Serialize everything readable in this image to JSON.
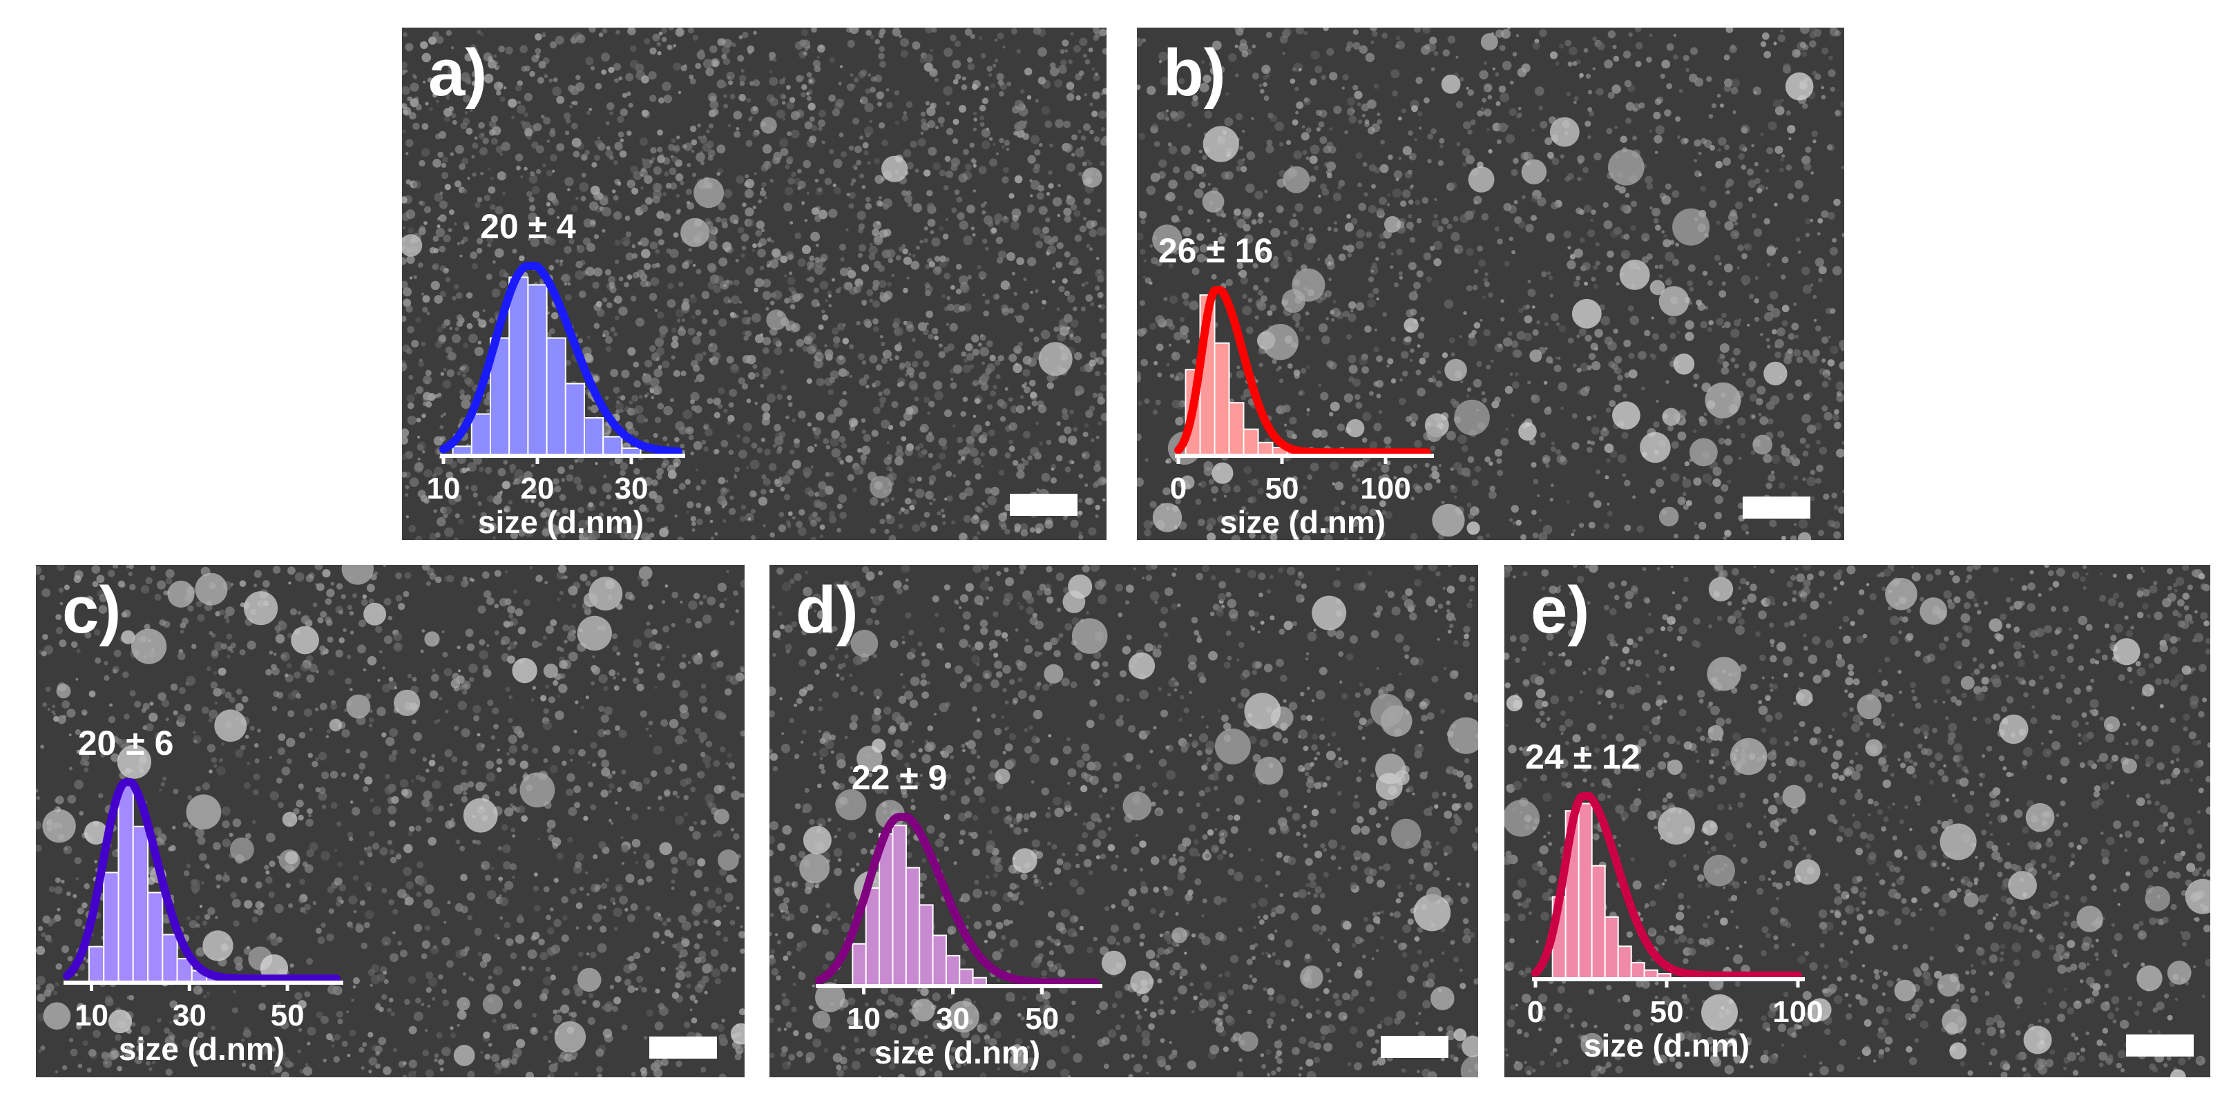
{
  "figure": {
    "panels": [
      {
        "id": "a",
        "label": "a)",
        "stat": "20 ± 4",
        "xlabel": "size (d.nm)",
        "xticks": [
          "10",
          "20",
          "30"
        ],
        "color": "#1a1aff",
        "bar_color": "#8d8dff",
        "x_range": [
          10,
          35
        ],
        "mode": 19,
        "bins": [
          {
            "x": 12,
            "h": 0.05
          },
          {
            "x": 14,
            "h": 0.22
          },
          {
            "x": 16,
            "h": 0.62
          },
          {
            "x": 18,
            "h": 0.94
          },
          {
            "x": 20,
            "h": 0.9
          },
          {
            "x": 22,
            "h": 0.62
          },
          {
            "x": 24,
            "h": 0.38
          },
          {
            "x": 26,
            "h": 0.2
          },
          {
            "x": 28,
            "h": 0.1
          },
          {
            "x": 30,
            "h": 0.04
          }
        ]
      },
      {
        "id": "b",
        "label": "b)",
        "stat": "26 ± 16",
        "xlabel": "size (d.nm)",
        "xticks": [
          "0",
          "50",
          "100"
        ],
        "color": "#ff0000",
        "bar_color": "#ff9a9a",
        "x_range": [
          0,
          120
        ],
        "mode": 18,
        "bins": [
          {
            "x": 7,
            "h": 0.52
          },
          {
            "x": 14,
            "h": 0.97
          },
          {
            "x": 21,
            "h": 0.68
          },
          {
            "x": 28,
            "h": 0.32
          },
          {
            "x": 35,
            "h": 0.16
          },
          {
            "x": 42,
            "h": 0.08
          },
          {
            "x": 49,
            "h": 0.05
          },
          {
            "x": 56,
            "h": 0.03
          },
          {
            "x": 63,
            "h": 0.02
          }
        ]
      },
      {
        "id": "c",
        "label": "c)",
        "stat": "20 ± 6",
        "xlabel": "size (d.nm)",
        "xticks": [
          "10",
          "30",
          "50"
        ],
        "color": "#4400cc",
        "bar_color": "#a48aff",
        "x_range": [
          5,
          60
        ],
        "mode": 17,
        "bins": [
          {
            "x": 11,
            "h": 0.18
          },
          {
            "x": 14,
            "h": 0.55
          },
          {
            "x": 17,
            "h": 0.98
          },
          {
            "x": 20,
            "h": 0.78
          },
          {
            "x": 23,
            "h": 0.45
          },
          {
            "x": 26,
            "h": 0.24
          },
          {
            "x": 29,
            "h": 0.12
          },
          {
            "x": 32,
            "h": 0.06
          },
          {
            "x": 35,
            "h": 0.03
          }
        ]
      },
      {
        "id": "d",
        "label": "d)",
        "stat": "22 ± 9",
        "xlabel": "size (d.nm)",
        "xticks": [
          "10",
          "30",
          "50"
        ],
        "color": "#800080",
        "bar_color": "#c88ad0",
        "x_range": [
          0,
          62
        ],
        "mode": 18,
        "bins": [
          {
            "x": 9,
            "h": 0.25
          },
          {
            "x": 12,
            "h": 0.58
          },
          {
            "x": 15,
            "h": 0.9
          },
          {
            "x": 18,
            "h": 0.95
          },
          {
            "x": 21,
            "h": 0.7
          },
          {
            "x": 24,
            "h": 0.48
          },
          {
            "x": 27,
            "h": 0.3
          },
          {
            "x": 30,
            "h": 0.18
          },
          {
            "x": 33,
            "h": 0.1
          },
          {
            "x": 36,
            "h": 0.05
          }
        ]
      },
      {
        "id": "e",
        "label": "e)",
        "stat": "24 ± 12",
        "xlabel": "size (d.nm)",
        "xticks": [
          "0",
          "50",
          "100"
        ],
        "color": "#cc0044",
        "bar_color": "#f08aa8",
        "x_range": [
          0,
          100
        ],
        "mode": 18,
        "bins": [
          {
            "x": 9,
            "h": 0.45
          },
          {
            "x": 14,
            "h": 0.92
          },
          {
            "x": 19,
            "h": 0.96
          },
          {
            "x": 24,
            "h": 0.62
          },
          {
            "x": 29,
            "h": 0.34
          },
          {
            "x": 34,
            "h": 0.18
          },
          {
            "x": 39,
            "h": 0.09
          },
          {
            "x": 44,
            "h": 0.05
          },
          {
            "x": 49,
            "h": 0.03
          }
        ]
      }
    ]
  }
}
